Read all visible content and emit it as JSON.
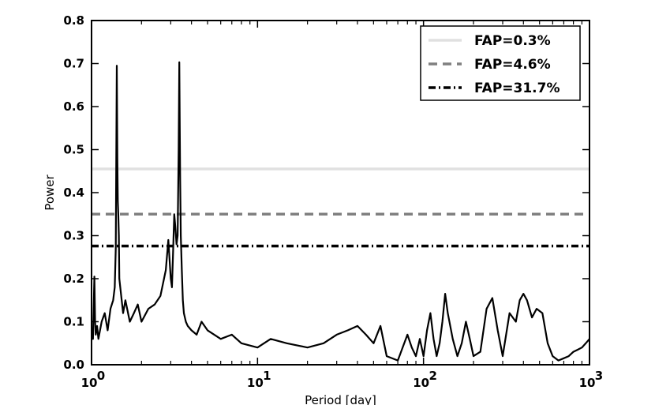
{
  "chart_data": {
    "type": "line",
    "xlabel": "Period [day]",
    "ylabel": "Power",
    "xscale": "log",
    "xlim": [
      1,
      1000
    ],
    "ylim": [
      0,
      0.8
    ],
    "grid": false,
    "legend_position": "top-right",
    "x_ticks": [
      {
        "value": 1,
        "label": "10",
        "exp": "0"
      },
      {
        "value": 10,
        "label": "10",
        "exp": "1"
      },
      {
        "value": 100,
        "label": "10",
        "exp": "2"
      },
      {
        "value": 1000,
        "label": "10",
        "exp": "3"
      }
    ],
    "y_ticks": [
      {
        "value": 0.0,
        "label": "0.0"
      },
      {
        "value": 0.1,
        "label": "0.1"
      },
      {
        "value": 0.2,
        "label": "0.2"
      },
      {
        "value": 0.3,
        "label": "0.3"
      },
      {
        "value": 0.4,
        "label": "0.4"
      },
      {
        "value": 0.5,
        "label": "0.5"
      },
      {
        "value": 0.6,
        "label": "0.6"
      },
      {
        "value": 0.7,
        "label": "0.7"
      },
      {
        "value": 0.8,
        "label": "0.8"
      }
    ],
    "thresholds": [
      {
        "name": "FAP=0.3%",
        "value": 0.455,
        "color": "#e0e0e0",
        "style": "solid"
      },
      {
        "name": "FAP=4.6%",
        "value": 0.35,
        "color": "#808080",
        "style": "dashed"
      },
      {
        "name": "FAP=31.7%",
        "value": 0.276,
        "color": "#000000",
        "style": "dashdot"
      }
    ],
    "series": [
      {
        "color": "#000000",
        "x": [
          1.0,
          1.02,
          1.04,
          1.05,
          1.06,
          1.08,
          1.1,
          1.15,
          1.2,
          1.25,
          1.3,
          1.35,
          1.38,
          1.4,
          1.42,
          1.43,
          1.44,
          1.45,
          1.46,
          1.47,
          1.5,
          1.55,
          1.6,
          1.7,
          1.8,
          1.9,
          2.0,
          2.2,
          2.4,
          2.6,
          2.8,
          2.9,
          3.0,
          3.05,
          3.1,
          3.15,
          3.2,
          3.25,
          3.3,
          3.35,
          3.38,
          3.4,
          3.42,
          3.45,
          3.5,
          3.55,
          3.6,
          3.7,
          3.8,
          4.0,
          4.3,
          4.6,
          5.0,
          6.0,
          7.0,
          8.0,
          10.0,
          12.0,
          15.0,
          20.0,
          25.0,
          30.0,
          35.0,
          40.0,
          45.0,
          50.0,
          55.0,
          60.0,
          70.0,
          80.0,
          85.0,
          90.0,
          95.0,
          100.0,
          105.0,
          110.0,
          115.0,
          120.0,
          125.0,
          130.0,
          135.0,
          140.0,
          150.0,
          160.0,
          170.0,
          180.0,
          190.0,
          200.0,
          220.0,
          240.0,
          260.0,
          280.0,
          300.0,
          330.0,
          360.0,
          380.0,
          400.0,
          420.0,
          450.0,
          480.0,
          520.0,
          560.0,
          600.0,
          650.0,
          700.0,
          750.0,
          800.0,
          850.0,
          900.0,
          950.0,
          1000.0
        ],
        "y": [
          0.08,
          0.06,
          0.205,
          0.1,
          0.07,
          0.09,
          0.06,
          0.1,
          0.12,
          0.08,
          0.13,
          0.15,
          0.18,
          0.27,
          0.695,
          0.48,
          0.38,
          0.35,
          0.3,
          0.2,
          0.17,
          0.12,
          0.15,
          0.1,
          0.12,
          0.14,
          0.1,
          0.13,
          0.14,
          0.16,
          0.22,
          0.29,
          0.2,
          0.18,
          0.26,
          0.35,
          0.32,
          0.28,
          0.3,
          0.5,
          0.703,
          0.55,
          0.43,
          0.3,
          0.22,
          0.15,
          0.12,
          0.1,
          0.09,
          0.08,
          0.07,
          0.1,
          0.08,
          0.06,
          0.07,
          0.05,
          0.04,
          0.06,
          0.05,
          0.04,
          0.05,
          0.07,
          0.08,
          0.09,
          0.07,
          0.05,
          0.09,
          0.02,
          0.01,
          0.07,
          0.04,
          0.02,
          0.06,
          0.02,
          0.08,
          0.12,
          0.06,
          0.02,
          0.05,
          0.1,
          0.165,
          0.12,
          0.06,
          0.02,
          0.05,
          0.1,
          0.06,
          0.02,
          0.03,
          0.13,
          0.155,
          0.08,
          0.02,
          0.12,
          0.1,
          0.15,
          0.165,
          0.15,
          0.11,
          0.13,
          0.12,
          0.05,
          0.02,
          0.01,
          0.015,
          0.02,
          0.03,
          0.035,
          0.04,
          0.05,
          0.06
        ]
      }
    ]
  }
}
